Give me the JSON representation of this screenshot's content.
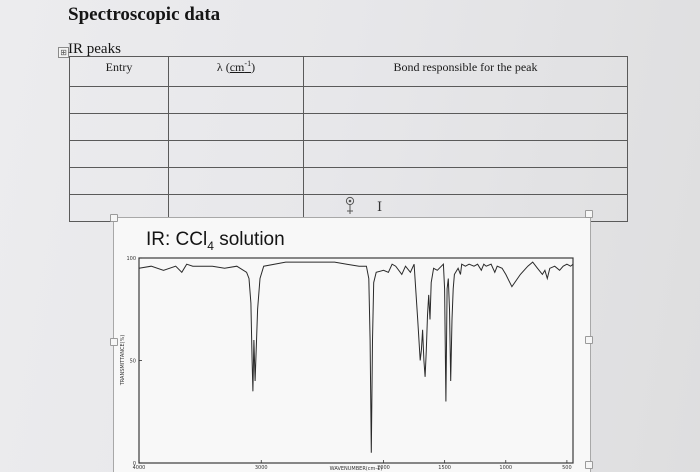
{
  "heading": "Spectroscopic data",
  "ir_section": {
    "title": "IR peaks",
    "columns": {
      "entry": "Entry",
      "lambda_symbol": "λ",
      "lambda_unit": "cm",
      "lambda_exp": "-1",
      "bond": "Bond responsible for the peak"
    },
    "rows": [
      [
        "",
        "",
        ""
      ],
      [
        "",
        "",
        ""
      ],
      [
        "",
        "",
        ""
      ],
      [
        "",
        "",
        ""
      ],
      [
        "",
        "",
        ""
      ]
    ],
    "move_handle_glyph": "⊞",
    "cursor_glyph": "I"
  },
  "spectrum": {
    "title_prefix": "IR: CCl",
    "title_subscript": "4",
    "title_suffix": " solution",
    "y_label": "TRANSMITTANCE(%)",
    "x_label": "WAVENUMBER(cm-1)"
  },
  "chart_data": {
    "type": "line",
    "title": "IR: CCl4 solution",
    "xlabel": "WAVENUMBER(cm-1)",
    "ylabel": "TRANSMITTANCE(%)",
    "x_ticks": [
      "4000",
      "3000",
      "2000",
      "1500",
      "1000",
      "500"
    ],
    "y_ticks": [
      "100",
      "50",
      "0"
    ],
    "xlim": [
      4000,
      450
    ],
    "ylim": [
      0,
      100
    ],
    "grid": false,
    "series": [
      {
        "points": [
          [
            4000,
            95
          ],
          [
            3900,
            96
          ],
          [
            3800,
            94
          ],
          [
            3700,
            96
          ],
          [
            3650,
            93
          ],
          [
            3610,
            97
          ],
          [
            3560,
            96
          ],
          [
            3400,
            96
          ],
          [
            3300,
            95
          ],
          [
            3200,
            96
          ],
          [
            3120,
            93
          ],
          [
            3100,
            90
          ],
          [
            3085,
            78
          ],
          [
            3075,
            50
          ],
          [
            3068,
            35
          ],
          [
            3060,
            60
          ],
          [
            3050,
            40
          ],
          [
            3040,
            58
          ],
          [
            3030,
            75
          ],
          [
            3010,
            90
          ],
          [
            2980,
            96
          ],
          [
            2800,
            98
          ],
          [
            2600,
            98
          ],
          [
            2400,
            98
          ],
          [
            2300,
            97
          ],
          [
            2200,
            96
          ],
          [
            2140,
            96
          ],
          [
            2120,
            90
          ],
          [
            2110,
            60
          ],
          [
            2100,
            5
          ],
          [
            2090,
            60
          ],
          [
            2080,
            88
          ],
          [
            2060,
            93
          ],
          [
            2000,
            94
          ],
          [
            1960,
            93
          ],
          [
            1930,
            97
          ],
          [
            1900,
            96
          ],
          [
            1850,
            92
          ],
          [
            1820,
            96
          ],
          [
            1780,
            93
          ],
          [
            1750,
            97
          ],
          [
            1720,
            70
          ],
          [
            1700,
            50
          ],
          [
            1690,
            55
          ],
          [
            1680,
            65
          ],
          [
            1670,
            50
          ],
          [
            1660,
            42
          ],
          [
            1650,
            55
          ],
          [
            1640,
            72
          ],
          [
            1630,
            82
          ],
          [
            1620,
            70
          ],
          [
            1610,
            88
          ],
          [
            1590,
            95
          ],
          [
            1560,
            94
          ],
          [
            1510,
            97
          ],
          [
            1500,
            85
          ],
          [
            1490,
            30
          ],
          [
            1480,
            85
          ],
          [
            1470,
            90
          ],
          [
            1460,
            75
          ],
          [
            1450,
            40
          ],
          [
            1440,
            70
          ],
          [
            1430,
            85
          ],
          [
            1420,
            92
          ],
          [
            1390,
            95
          ],
          [
            1370,
            92
          ],
          [
            1360,
            97
          ],
          [
            1330,
            96
          ],
          [
            1300,
            97
          ],
          [
            1260,
            96
          ],
          [
            1230,
            97
          ],
          [
            1200,
            94
          ],
          [
            1180,
            97
          ],
          [
            1160,
            96
          ],
          [
            1120,
            97
          ],
          [
            1090,
            93
          ],
          [
            1070,
            96
          ],
          [
            1030,
            95
          ],
          [
            1000,
            92
          ],
          [
            950,
            86
          ],
          [
            880,
            92
          ],
          [
            820,
            96
          ],
          [
            780,
            98
          ],
          [
            740,
            95
          ],
          [
            700,
            92
          ],
          [
            680,
            94
          ],
          [
            660,
            90
          ],
          [
            640,
            95
          ],
          [
            600,
            96
          ],
          [
            560,
            94
          ],
          [
            530,
            96
          ],
          [
            500,
            97
          ],
          [
            470,
            96
          ],
          [
            450,
            97
          ]
        ]
      }
    ]
  }
}
